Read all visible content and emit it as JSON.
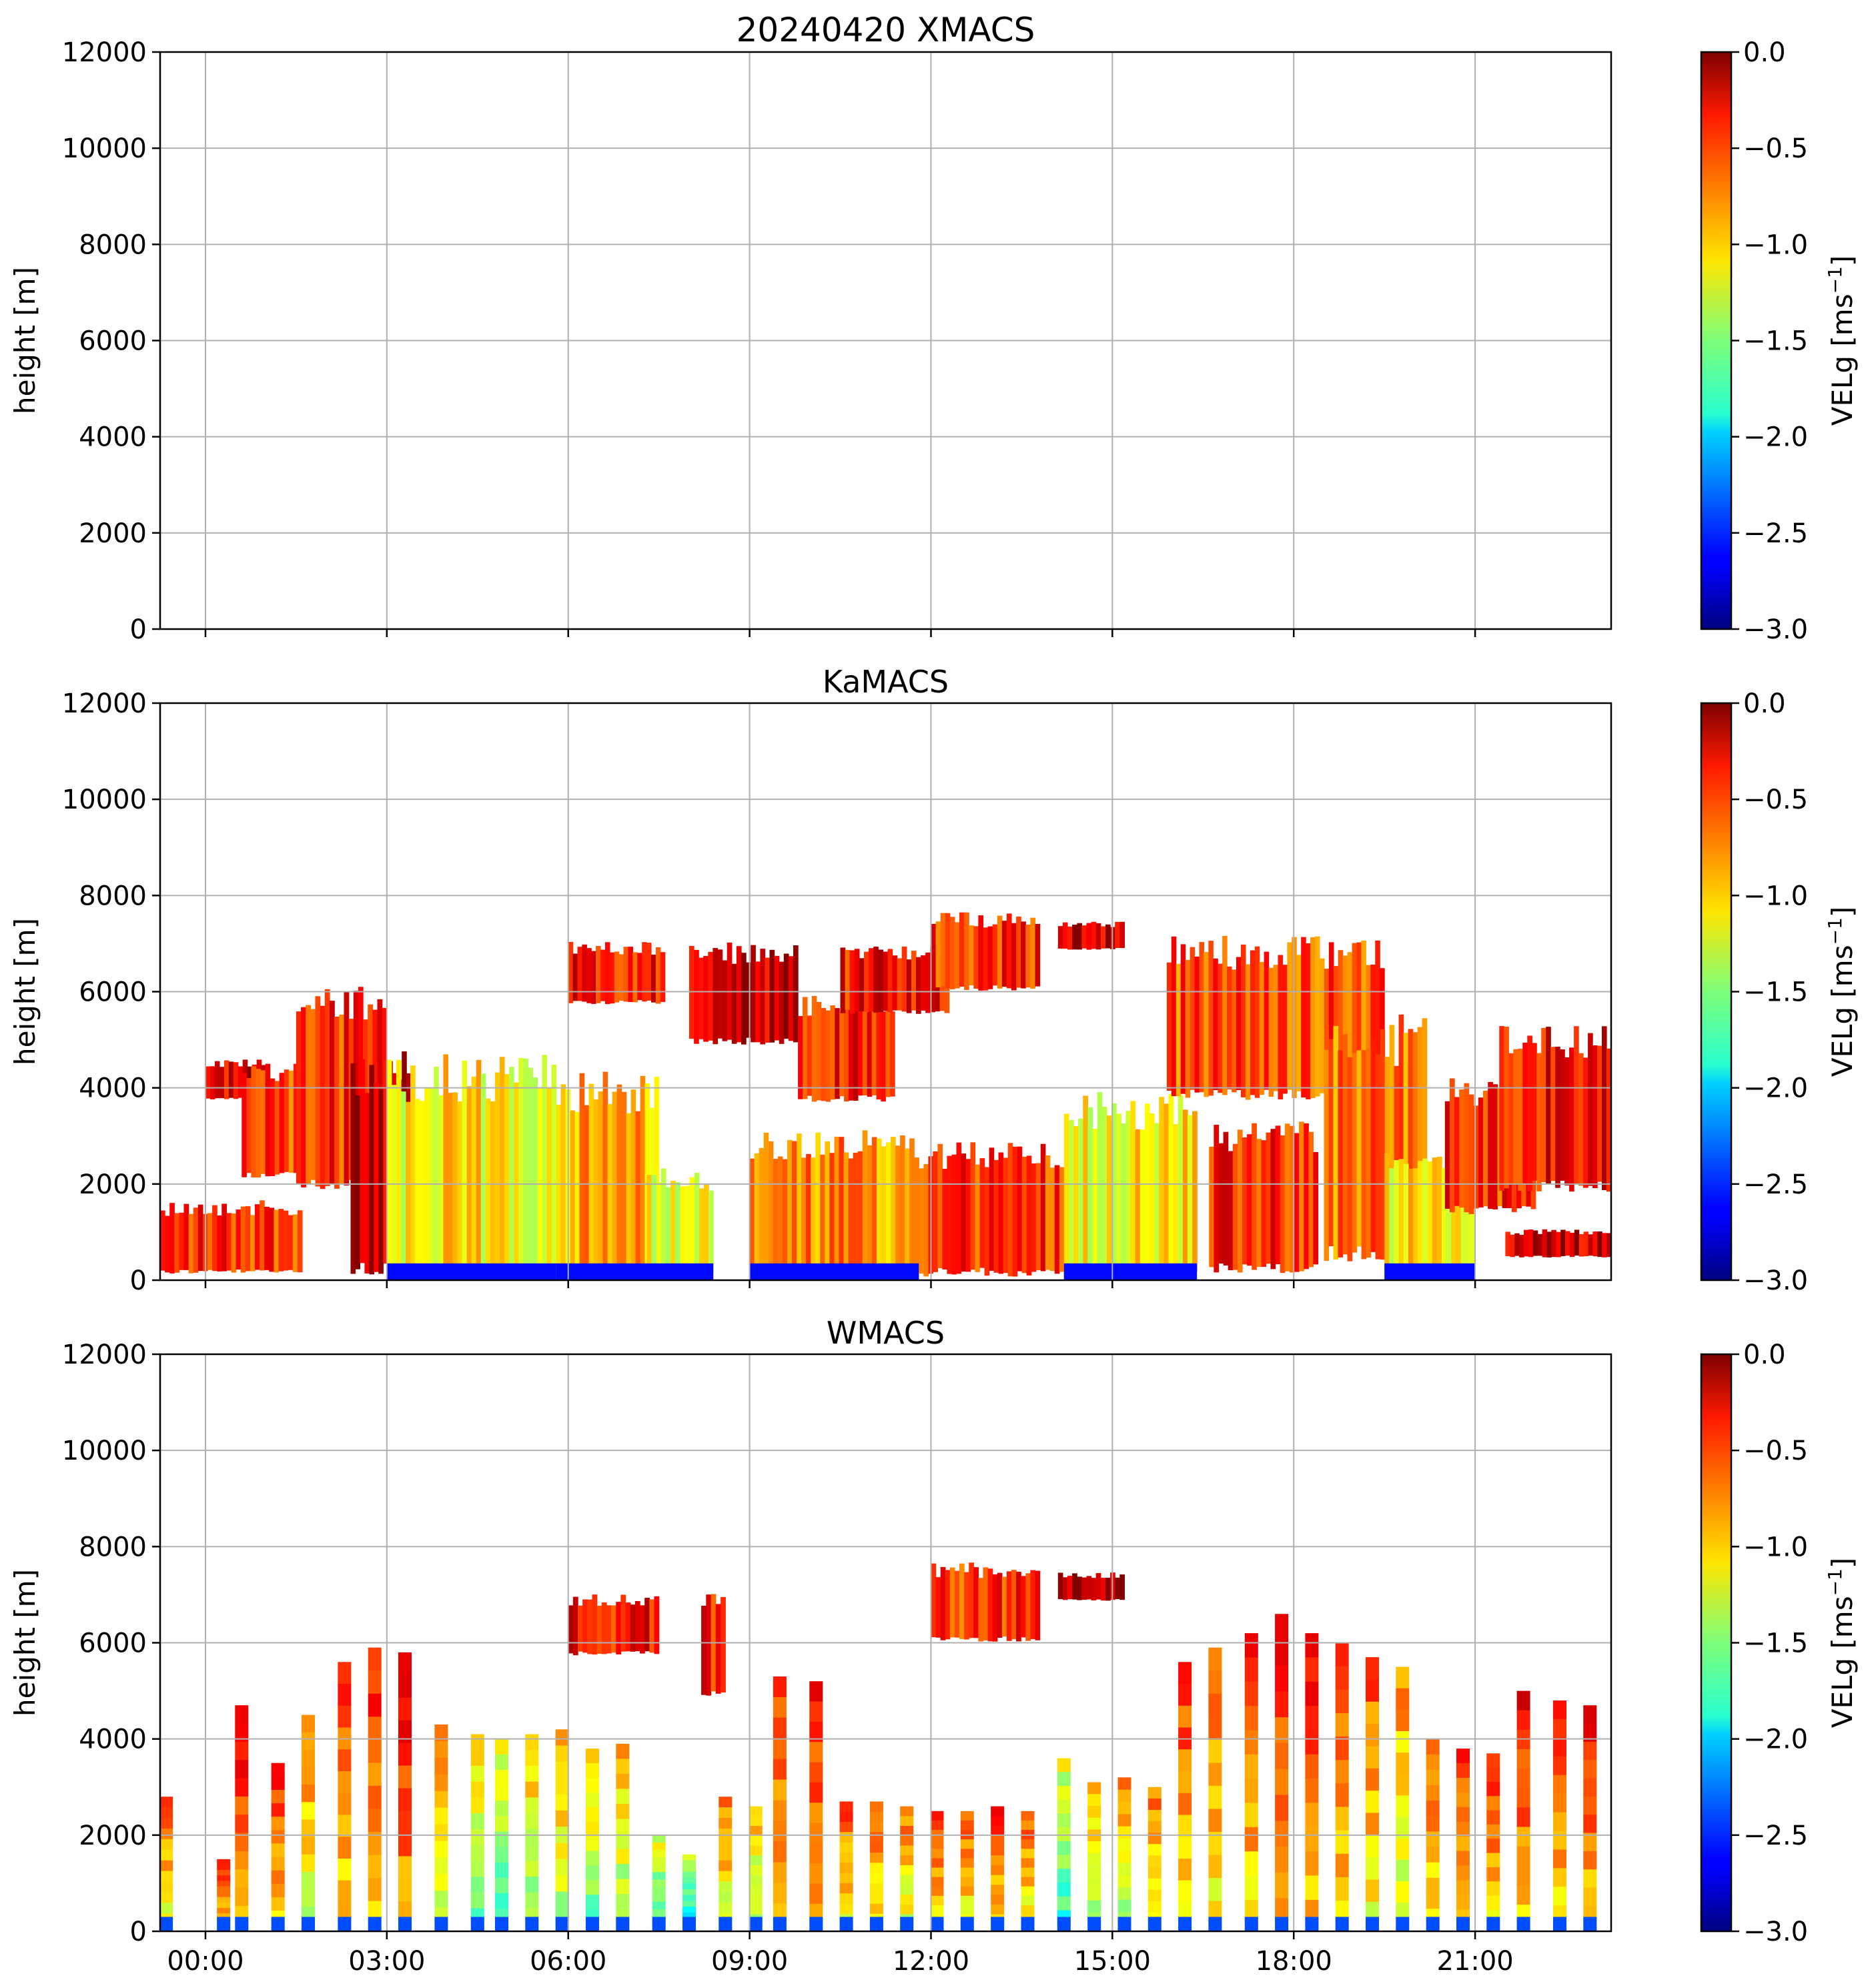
{
  "chart_data": [
    {
      "type": "heatmap",
      "title": "20240420 XMACS",
      "ylabel": "height [m]",
      "ylim": [
        0,
        12000
      ],
      "xlim": [
        -0.75,
        23.25
      ],
      "yticks": [
        0,
        2000,
        4000,
        6000,
        8000,
        10000,
        12000
      ],
      "xticks": [
        0,
        3,
        6,
        9,
        12,
        15,
        18,
        21
      ],
      "xticklabels": [],
      "grid": true,
      "colorbar": {
        "label_main": "VELg [ms",
        "label_exp": "−1",
        "label_close": "]",
        "range": [
          -3.0,
          0.0
        ],
        "ticks": [
          "0.0",
          "−0.5",
          "−1.0",
          "−1.5",
          "−2.0",
          "−2.5",
          "−3.0"
        ]
      },
      "blocks": []
    },
    {
      "type": "heatmap",
      "title": "KaMACS",
      "ylabel": "height [m]",
      "ylim": [
        0,
        12000
      ],
      "xlim": [
        -0.75,
        23.25
      ],
      "yticks": [
        0,
        2000,
        4000,
        6000,
        8000,
        10000,
        12000
      ],
      "xticks": [
        0,
        3,
        6,
        9,
        12,
        15,
        18,
        21
      ],
      "xticklabels": [],
      "grid": true,
      "colorbar": {
        "label_main": "VELg [ms",
        "label_exp": "−1",
        "label_close": "]",
        "range": [
          -3.0,
          0.0
        ],
        "ticks": [
          "0.0",
          "−0.5",
          "−1.0",
          "−1.5",
          "−2.0",
          "−2.5",
          "−3.0"
        ]
      },
      "blocks": [
        {
          "t0": -0.75,
          "t1": 1.6,
          "h0": 200,
          "h1": 1500,
          "v": -0.5
        },
        {
          "t0": 0.0,
          "t1": 1.0,
          "h0": 3800,
          "h1": 4500,
          "v": -0.3
        },
        {
          "t0": 0.6,
          "t1": 2.0,
          "h0": 2200,
          "h1": 4300,
          "v": -0.6
        },
        {
          "t0": 1.5,
          "t1": 3.0,
          "h0": 2000,
          "h1": 5900,
          "v": -0.5
        },
        {
          "t0": 2.4,
          "t1": 3.4,
          "h0": 300,
          "h1": 4300,
          "v": -0.2
        },
        {
          "t0": 3.0,
          "t1": 5.8,
          "h0": 200,
          "h1": 4200,
          "v": -1.1
        },
        {
          "t0": 5.8,
          "t1": 7.5,
          "h0": 200,
          "h1": 3900,
          "v": -0.9
        },
        {
          "t0": 6.0,
          "t1": 7.6,
          "h0": 5800,
          "h1": 6900,
          "v": -0.4
        },
        {
          "t0": 7.3,
          "t1": 8.4,
          "h0": 200,
          "h1": 2100,
          "v": -1.2
        },
        {
          "t0": 8.0,
          "t1": 9.8,
          "h0": 5000,
          "h1": 6800,
          "v": -0.3
        },
        {
          "t0": 9.0,
          "t1": 11.8,
          "h0": 200,
          "h1": 2800,
          "v": -0.8
        },
        {
          "t0": 9.8,
          "t1": 11.4,
          "h0": 3800,
          "h1": 5700,
          "v": -0.4
        },
        {
          "t0": 10.5,
          "t1": 12.3,
          "h0": 5600,
          "h1": 6800,
          "v": -0.4
        },
        {
          "t0": 12.0,
          "t1": 13.8,
          "h0": 6100,
          "h1": 7500,
          "v": -0.5
        },
        {
          "t0": 11.8,
          "t1": 14.2,
          "h0": 200,
          "h1": 2600,
          "v": -0.5
        },
        {
          "t0": 14.2,
          "t1": 16.4,
          "h0": 200,
          "h1": 3500,
          "v": -1.1
        },
        {
          "t0": 14.1,
          "t1": 15.2,
          "h0": 6900,
          "h1": 7400,
          "v": -0.2
        },
        {
          "t0": 15.9,
          "t1": 19.5,
          "h0": 3900,
          "h1": 6800,
          "v": -0.6
        },
        {
          "t0": 16.6,
          "t1": 18.4,
          "h0": 300,
          "h1": 3000,
          "v": -0.5
        },
        {
          "t0": 18.5,
          "t1": 20.2,
          "h0": 600,
          "h1": 5000,
          "v": -0.7
        },
        {
          "t0": 19.5,
          "t1": 21.0,
          "h0": 300,
          "h1": 2500,
          "v": -1.1
        },
        {
          "t0": 20.5,
          "t1": 22.0,
          "h0": 1500,
          "h1": 3900,
          "v": -0.5
        },
        {
          "t0": 21.4,
          "t1": 23.25,
          "h0": 2000,
          "h1": 5000,
          "v": -0.4
        },
        {
          "t0": 21.5,
          "t1": 23.25,
          "h0": 500,
          "h1": 1000,
          "v": -0.2
        }
      ]
    },
    {
      "type": "heatmap",
      "title": "WMACS",
      "ylabel": "height [m]",
      "ylim": [
        0,
        12000
      ],
      "xlim": [
        -0.75,
        23.25
      ],
      "yticks": [
        0,
        2000,
        4000,
        6000,
        8000,
        10000,
        12000
      ],
      "xticks": [
        0,
        3,
        6,
        9,
        12,
        15,
        18,
        21
      ],
      "xticklabels": [
        "00:00",
        "03:00",
        "06:00",
        "09:00",
        "12:00",
        "15:00",
        "18:00",
        "21:00"
      ],
      "grid": true,
      "colorbar": {
        "label_main": "VELg [ms",
        "label_exp": "−1",
        "label_close": "]",
        "range": [
          -3.0,
          0.0
        ],
        "ticks": [
          "0.0",
          "−0.5",
          "−1.0",
          "−1.5",
          "−2.0",
          "−2.5",
          "−3.0"
        ]
      },
      "columns": [
        {
          "t": -0.65,
          "top": 2800,
          "v": -0.6
        },
        {
          "t": 0.3,
          "top": 1500,
          "v": -0.4
        },
        {
          "t": 0.6,
          "top": 4700,
          "v": -0.3
        },
        {
          "t": 1.2,
          "top": 3500,
          "v": -0.5
        },
        {
          "t": 1.7,
          "top": 4500,
          "v": -0.7
        },
        {
          "t": 2.3,
          "top": 5600,
          "v": -0.5
        },
        {
          "t": 2.8,
          "top": 5900,
          "v": -0.4
        },
        {
          "t": 3.3,
          "top": 5800,
          "v": -0.3
        },
        {
          "t": 3.9,
          "top": 4300,
          "v": -0.8
        },
        {
          "t": 4.5,
          "top": 4100,
          "v": -1.0
        },
        {
          "t": 4.9,
          "top": 4000,
          "v": -1.1
        },
        {
          "t": 5.4,
          "top": 4100,
          "v": -0.9
        },
        {
          "t": 5.9,
          "top": 4200,
          "v": -0.8
        },
        {
          "t": 6.4,
          "top": 3800,
          "v": -1.0
        },
        {
          "t": 6.9,
          "top": 3900,
          "v": -0.9
        },
        {
          "t": 7.5,
          "top": 2000,
          "v": -1.2
        },
        {
          "t": 8.0,
          "top": 1600,
          "v": -1.3
        },
        {
          "t": 8.6,
          "top": 2800,
          "v": -0.7
        },
        {
          "t": 9.1,
          "top": 2600,
          "v": -0.9
        },
        {
          "t": 9.5,
          "top": 5300,
          "v": -0.5
        },
        {
          "t": 10.1,
          "top": 5200,
          "v": -0.4
        },
        {
          "t": 10.6,
          "top": 2700,
          "v": -0.6
        },
        {
          "t": 11.1,
          "top": 2700,
          "v": -0.6
        },
        {
          "t": 11.6,
          "top": 2600,
          "v": -0.7
        },
        {
          "t": 12.1,
          "top": 2500,
          "v": -0.5
        },
        {
          "t": 12.6,
          "top": 2500,
          "v": -0.6
        },
        {
          "t": 13.1,
          "top": 2600,
          "v": -0.5
        },
        {
          "t": 13.6,
          "top": 2500,
          "v": -0.6
        },
        {
          "t": 14.2,
          "top": 3600,
          "v": -1.2
        },
        {
          "t": 14.7,
          "top": 3100,
          "v": -0.9
        },
        {
          "t": 15.2,
          "top": 3200,
          "v": -0.8
        },
        {
          "t": 15.7,
          "top": 3000,
          "v": -0.7
        },
        {
          "t": 16.2,
          "top": 5600,
          "v": -0.5
        },
        {
          "t": 16.7,
          "top": 5900,
          "v": -0.6
        },
        {
          "t": 17.3,
          "top": 6200,
          "v": -0.5
        },
        {
          "t": 17.8,
          "top": 6600,
          "v": -0.4
        },
        {
          "t": 18.3,
          "top": 6200,
          "v": -0.4
        },
        {
          "t": 18.8,
          "top": 6000,
          "v": -0.5
        },
        {
          "t": 19.3,
          "top": 5700,
          "v": -0.6
        },
        {
          "t": 19.8,
          "top": 5500,
          "v": -0.8
        },
        {
          "t": 20.3,
          "top": 4000,
          "v": -0.6
        },
        {
          "t": 20.8,
          "top": 3800,
          "v": -0.5
        },
        {
          "t": 21.3,
          "top": 3700,
          "v": -0.5
        },
        {
          "t": 21.8,
          "top": 5000,
          "v": -0.4
        },
        {
          "t": 22.4,
          "top": 4800,
          "v": -0.5
        },
        {
          "t": 22.9,
          "top": 4700,
          "v": -0.4
        }
      ],
      "high_blocks": [
        {
          "t0": 6.0,
          "t1": 7.5,
          "h0": 5800,
          "h1": 6900,
          "v": -0.4
        },
        {
          "t0": 8.2,
          "t1": 8.6,
          "h0": 5000,
          "h1": 6800,
          "v": -0.4
        },
        {
          "t0": 12.0,
          "t1": 13.8,
          "h0": 6100,
          "h1": 7500,
          "v": -0.5
        },
        {
          "t0": 14.1,
          "t1": 15.2,
          "h0": 6900,
          "h1": 7400,
          "v": -0.2
        }
      ]
    }
  ]
}
